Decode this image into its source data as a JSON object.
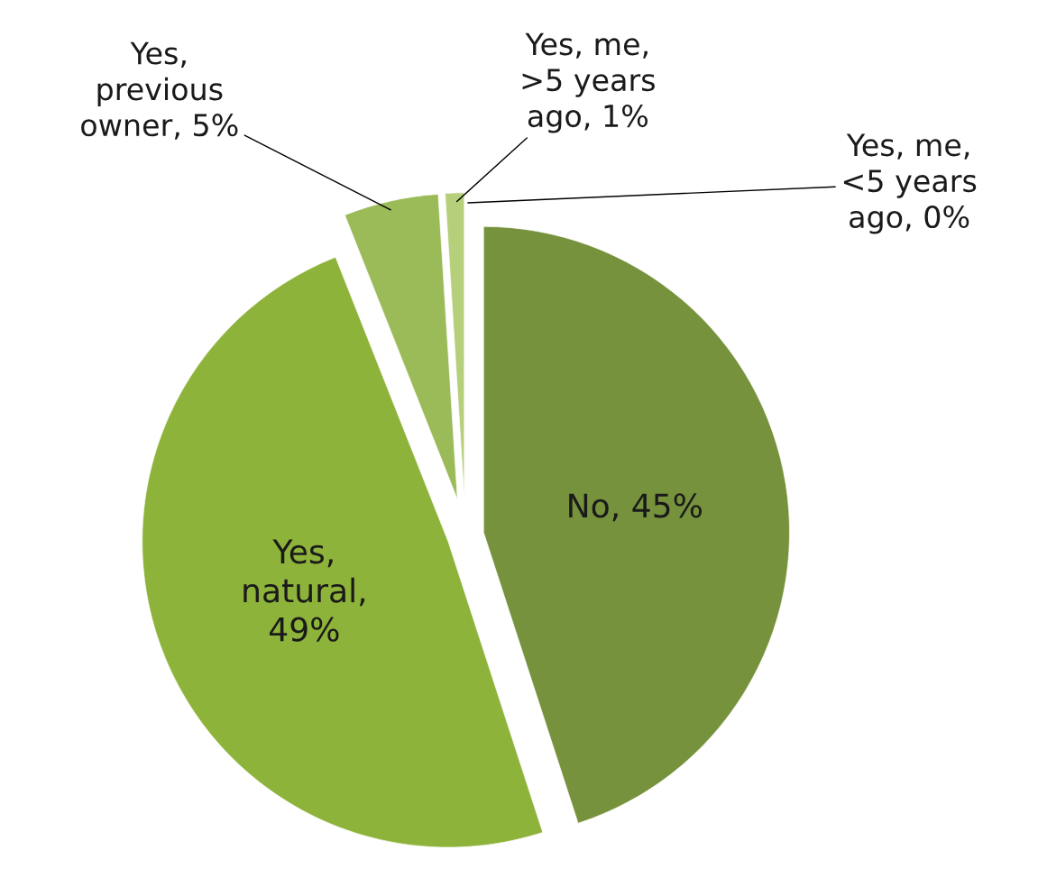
{
  "chart_data": {
    "type": "pie",
    "categories": [
      "No, 45%",
      "Yes,\nnatural,\n49%",
      "Yes,\nprevious\nowner, 5%",
      "Yes, me,\n>5 years\nago, 1%",
      "Yes, me,\n<5 years\nago, 0%"
    ],
    "values": [
      45,
      49,
      5,
      1,
      0
    ],
    "colors": [
      "#76923c",
      "#8db33a",
      "#9bbb59",
      "#b5cf7a",
      "#c9dc9f"
    ]
  }
}
